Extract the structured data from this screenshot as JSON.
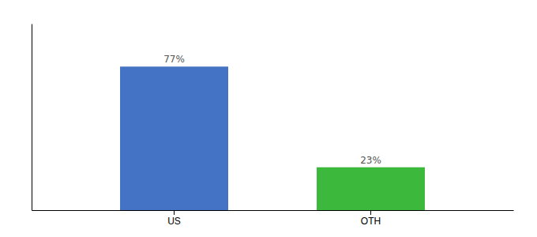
{
  "chart_data": {
    "type": "bar",
    "categories": [
      "US",
      "OTH"
    ],
    "values": [
      77,
      23
    ],
    "colors": [
      "#4472c4",
      "#3cb83c"
    ],
    "data_labels": true,
    "value_labels": [
      "77%",
      "23%"
    ],
    "ylim": [
      0,
      100
    ],
    "tick_labels": "x"
  }
}
